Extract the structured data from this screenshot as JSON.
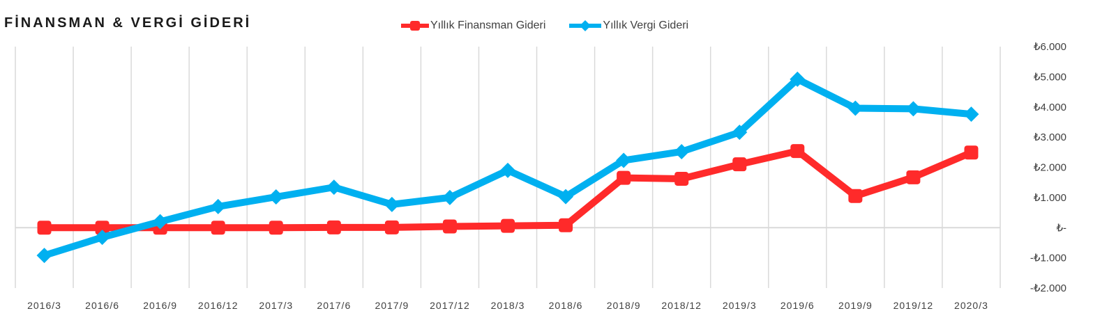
{
  "chart_data": {
    "type": "line",
    "title": "FİNANSMAN & VERGİ GİDERİ",
    "categories": [
      "2016/3",
      "2016/6",
      "2016/9",
      "2016/12",
      "2017/3",
      "2017/6",
      "2017/9",
      "2017/12",
      "2018/3",
      "2018/6",
      "2018/9",
      "2018/12",
      "2019/3",
      "2019/6",
      "2019/9",
      "2019/12",
      "2020/3"
    ],
    "series": [
      {
        "name": "Yıllık Finansman Gideri",
        "color": "#ff2a2a",
        "values": [
          0,
          0,
          0,
          0,
          0,
          10,
          10,
          40,
          60,
          80,
          1650,
          1620,
          2100,
          2540,
          1050,
          1670,
          2490
        ]
      },
      {
        "name": "Yıllık Vergi Gideri",
        "color": "#00b0f0",
        "values": [
          -920,
          -320,
          200,
          700,
          1020,
          1340,
          770,
          1000,
          1900,
          1030,
          2230,
          2520,
          3160,
          4920,
          3960,
          3940,
          3760
        ]
      }
    ],
    "ylim": [
      -2000,
      6000
    ],
    "yticks": [
      -2000,
      -1000,
      0,
      1000,
      2000,
      3000,
      4000,
      5000,
      6000
    ],
    "ytick_labels": [
      "-₺2.000",
      "-₺1.000",
      "₺-",
      "₺1.000",
      "₺2.000",
      "₺3.000",
      "₺4.000",
      "₺5.000",
      "₺6.000"
    ],
    "y_axis_side": "right",
    "grid": "vertical",
    "legend": "top"
  }
}
